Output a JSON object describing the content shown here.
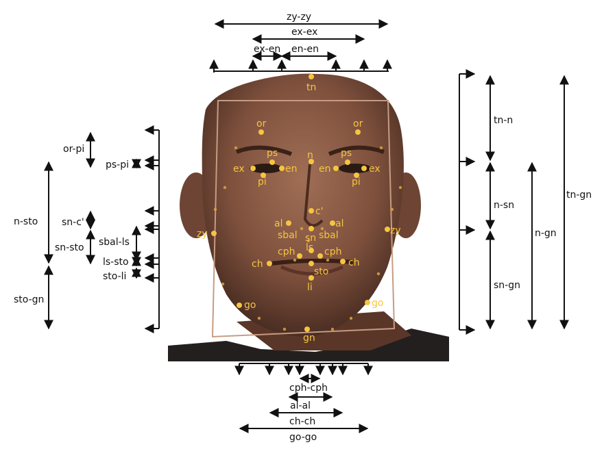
{
  "colors": {
    "landmark": "#f5c542",
    "lines": "#111111",
    "bbox": "#c79b83",
    "skin": "#8a5a44",
    "shirt": "#231f1e"
  },
  "photo": {
    "description_icon": "face-photo"
  },
  "landmarks": [
    "tn",
    "or",
    "or",
    "ps",
    "ps",
    "ex",
    "en",
    "n",
    "en",
    "ex",
    "pi",
    "pi",
    "c'",
    "al",
    "sn",
    "al",
    "sbal",
    "sbal",
    "zy",
    "zy",
    "cph",
    "ls",
    "cph",
    "ch",
    "ch",
    "sto",
    "li",
    "go",
    "go",
    "gn"
  ],
  "measurements": {
    "top": [
      "zy-zy",
      "ex-ex",
      "ex-en",
      "en-en"
    ],
    "left": [
      "or-pi",
      "ps-pi",
      "n-sto",
      "sn-c'",
      "sbal-ls",
      "sn-sto",
      "ls-sto",
      "sto-li",
      "sto-gn"
    ],
    "right": [
      "tn-n",
      "n-sn",
      "sn-gn",
      "n-gn",
      "tn-gn"
    ],
    "bottom": [
      "cph-cph",
      "al-al",
      "ch-ch",
      "go-go"
    ]
  }
}
